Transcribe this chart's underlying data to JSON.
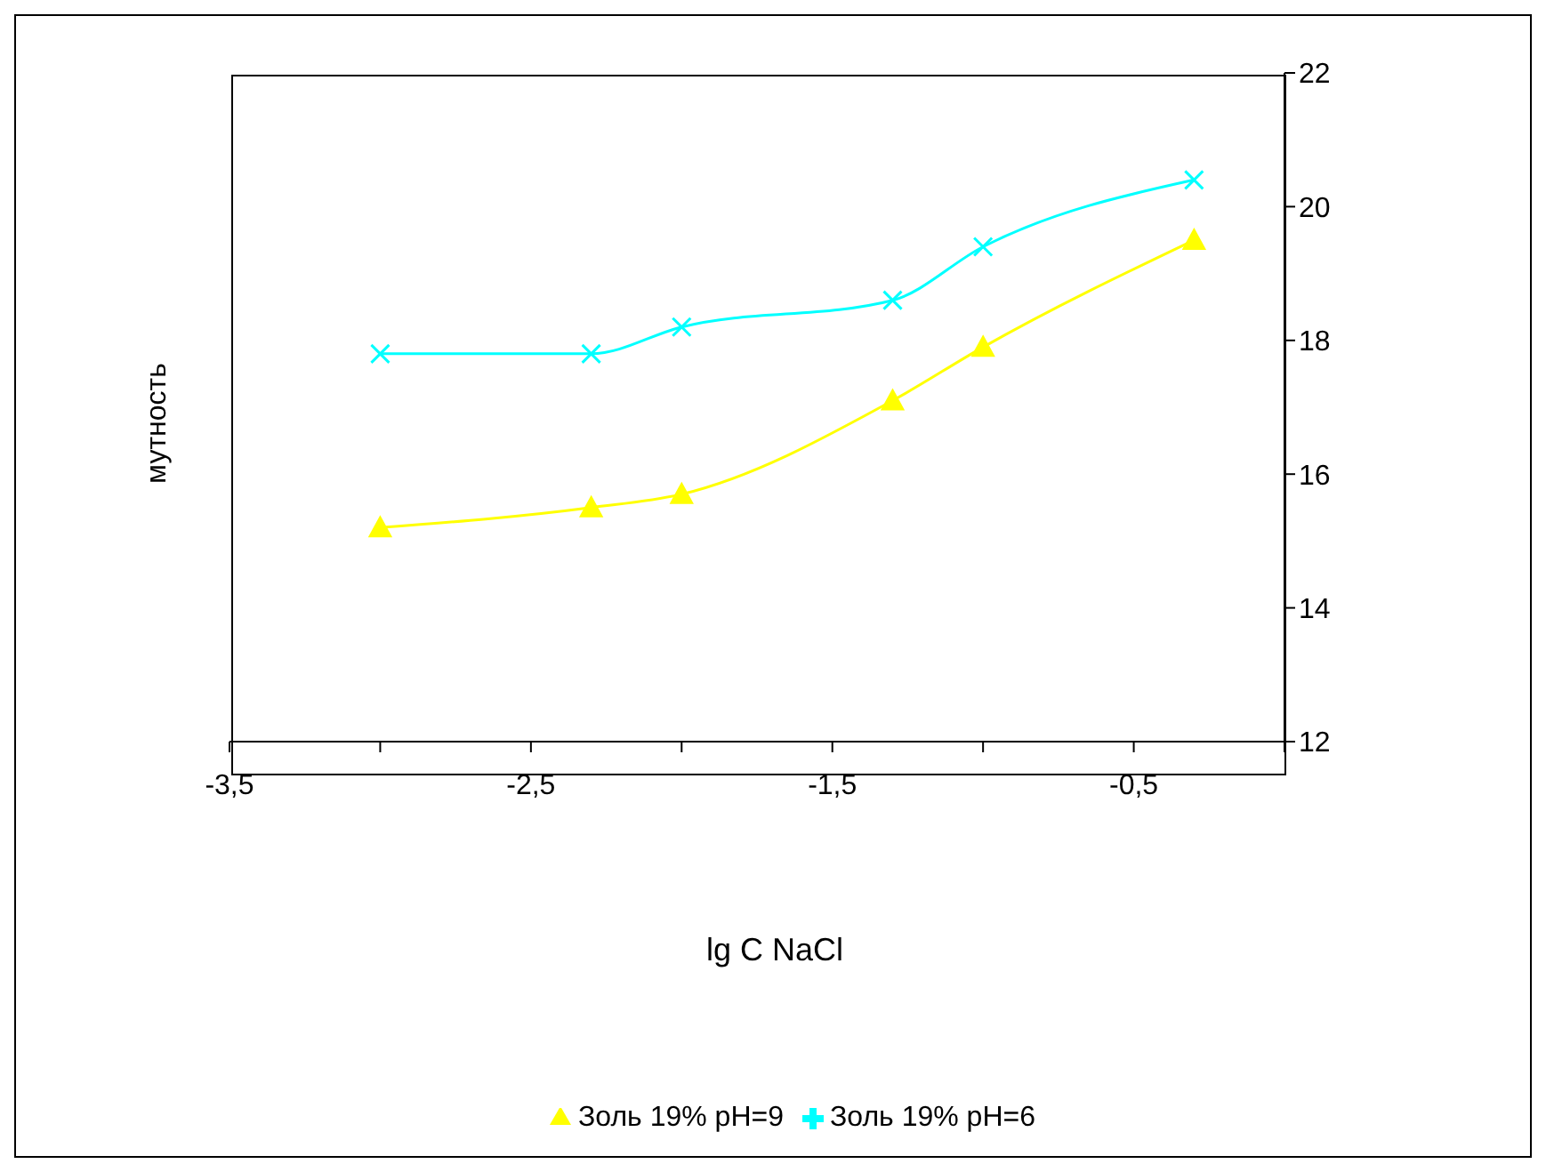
{
  "chart_data": {
    "type": "line",
    "xlabel": "lg C NaCl",
    "ylabel": "мутность",
    "x": [
      -3,
      -2.3,
      -2,
      -1.3,
      -1,
      -0.3
    ],
    "series": [
      {
        "name": "Золь 19% pH=9",
        "color": "#ffff00",
        "marker": "triangle",
        "values": [
          15.2,
          15.5,
          15.7,
          17.1,
          17.9,
          19.5
        ]
      },
      {
        "name": "Золь 19% pH=6",
        "color": "#00ffff",
        "marker": "cross",
        "values": [
          17.8,
          17.8,
          18.2,
          18.6,
          19.4,
          20.4
        ]
      }
    ],
    "xlim": [
      -3.5,
      0
    ],
    "xticks": [
      {
        "value": -3.5,
        "label": "-3,5"
      },
      {
        "value": -3,
        "label": null
      },
      {
        "value": -2.5,
        "label": "-2,5"
      },
      {
        "value": -2,
        "label": null
      },
      {
        "value": -1.5,
        "label": "-1,5"
      },
      {
        "value": -1,
        "label": null
      },
      {
        "value": -0.5,
        "label": "-0,5"
      },
      {
        "value": 0,
        "label": null
      }
    ],
    "ylim": [
      12,
      22
    ],
    "yticks": [
      12,
      14,
      16,
      18,
      20,
      22
    ],
    "grid": false,
    "legend": "bottom"
  }
}
